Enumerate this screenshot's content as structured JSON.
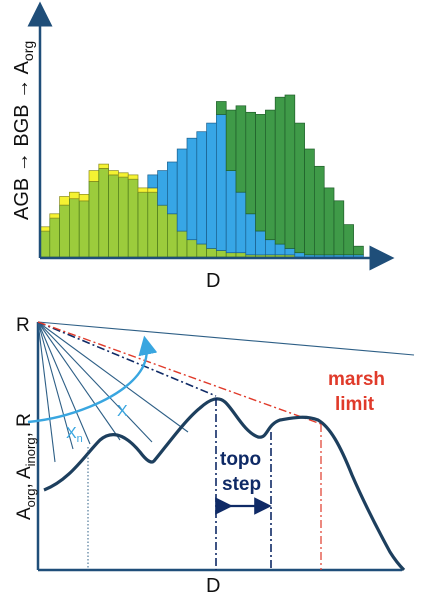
{
  "colors": {
    "axis": "#1f4e79",
    "light_green": "#9ccc3c",
    "light_green_edge": "#4e7a1a",
    "yellow": "#f5f232",
    "blue": "#37a6e6",
    "blue_edge": "#1a5f8c",
    "dark_green": "#3f9a48",
    "dark_green_edge": "#1f5e2a",
    "profile": "#1d3f5e",
    "ray": "#2e5f86",
    "dashdot": "#0f2a66",
    "marsh": "#e03a2a",
    "arc": "#39a6e0",
    "topo_text": "#0f2a66"
  },
  "top_panel": {
    "ylabel_line1": "AGB → BGB → A",
    "ylabel_sub": "org",
    "xlabel": "D",
    "chart_data": {
      "type": "bar",
      "stacked": true,
      "series_order": [
        "light_green",
        "yellow",
        "blue",
        "dark_green"
      ],
      "segments": [
        [
          [
            0,
            12
          ],
          [
            12,
            14
          ]
        ],
        [
          [
            0,
            18
          ],
          [
            18,
            20
          ]
        ],
        [
          [
            0,
            24
          ],
          [
            24,
            28
          ]
        ],
        [
          [
            0,
            27
          ],
          [
            27,
            30
          ]
        ],
        [
          [
            0,
            26
          ],
          [
            26,
            29
          ]
        ],
        [
          [
            0,
            35
          ],
          [
            35,
            40
          ]
        ],
        [
          [
            0,
            41
          ],
          [
            41,
            43
          ]
        ],
        [
          [
            0,
            38
          ],
          [
            38,
            40
          ]
        ],
        [
          [
            0,
            37
          ],
          [
            37,
            39
          ]
        ],
        [
          [
            0,
            36
          ],
          [
            36,
            38
          ]
        ],
        [
          [
            0,
            30
          ],
          [
            30,
            32
          ]
        ],
        [
          [
            0,
            30
          ],
          [
            30,
            32
          ],
          [
            32,
            38
          ]
        ],
        [
          [
            0,
            24
          ],
          [
            24,
            40
          ]
        ],
        [
          [
            0,
            20
          ],
          [
            20,
            44
          ]
        ],
        [
          [
            0,
            12
          ],
          [
            12,
            50
          ]
        ],
        [
          [
            0,
            8
          ],
          [
            8,
            55
          ]
        ],
        [
          [
            0,
            6
          ],
          [
            6,
            58
          ]
        ],
        [
          [
            0,
            4
          ],
          [
            4,
            62
          ]
        ],
        [
          [
            0,
            3
          ],
          [
            3,
            66
          ],
          [
            66,
            72
          ]
        ],
        [
          [
            0,
            2
          ],
          [
            2,
            40
          ],
          [
            40,
            68
          ]
        ],
        [
          [
            0,
            2
          ],
          [
            2,
            30
          ],
          [
            30,
            70
          ]
        ],
        [
          [
            0,
            1
          ],
          [
            1,
            20
          ],
          [
            20,
            67
          ]
        ],
        [
          [
            0,
            1
          ],
          [
            1,
            12
          ],
          [
            12,
            66
          ]
        ],
        [
          [
            0,
            1
          ],
          [
            1,
            8
          ],
          [
            8,
            68
          ]
        ],
        [
          [
            0,
            1
          ],
          [
            1,
            6
          ],
          [
            6,
            74
          ]
        ],
        [
          [
            0,
            1
          ],
          [
            1,
            4
          ],
          [
            4,
            75
          ]
        ],
        [
          [
            0,
            2
          ],
          [
            2,
            62
          ]
        ],
        [
          [
            0,
            1
          ],
          [
            1,
            50
          ]
        ],
        [
          [
            0,
            1
          ],
          [
            1,
            42
          ]
        ],
        [
          [
            0,
            1
          ],
          [
            1,
            32
          ]
        ],
        [
          [
            0,
            1
          ],
          [
            1,
            26
          ]
        ],
        [
          [
            0,
            1
          ],
          [
            1,
            15
          ]
        ],
        [
          [
            0,
            1
          ],
          [
            1,
            5
          ]
        ]
      ],
      "segment_colors": [
        [
          "light_green",
          "yellow"
        ],
        [
          "light_green",
          "yellow"
        ],
        [
          "light_green",
          "yellow"
        ],
        [
          "light_green",
          "yellow"
        ],
        [
          "light_green",
          "yellow"
        ],
        [
          "light_green",
          "yellow"
        ],
        [
          "light_green",
          "yellow"
        ],
        [
          "light_green",
          "yellow"
        ],
        [
          "light_green",
          "yellow"
        ],
        [
          "light_green",
          "yellow"
        ],
        [
          "light_green",
          "yellow"
        ],
        [
          "light_green",
          "yellow",
          "blue"
        ],
        [
          "light_green",
          "blue"
        ],
        [
          "light_green",
          "blue"
        ],
        [
          "light_green",
          "blue"
        ],
        [
          "light_green",
          "blue"
        ],
        [
          "light_green",
          "blue"
        ],
        [
          "light_green",
          "blue"
        ],
        [
          "light_green",
          "blue",
          "dark_green"
        ],
        [
          "light_green",
          "blue",
          "dark_green"
        ],
        [
          "light_green",
          "blue",
          "dark_green"
        ],
        [
          "light_green",
          "blue",
          "dark_green"
        ],
        [
          "light_green",
          "blue",
          "dark_green"
        ],
        [
          "light_green",
          "blue",
          "dark_green"
        ],
        [
          "light_green",
          "blue",
          "dark_green"
        ],
        [
          "light_green",
          "blue",
          "dark_green"
        ],
        [
          "blue",
          "dark_green"
        ],
        [
          "blue",
          "dark_green"
        ],
        [
          "blue",
          "dark_green"
        ],
        [
          "blue",
          "dark_green"
        ],
        [
          "blue",
          "dark_green"
        ],
        [
          "blue",
          "dark_green"
        ],
        [
          "blue",
          "dark_green"
        ]
      ]
    }
  },
  "bottom_panel": {
    "R_label": "R",
    "ylabel_A": "A",
    "ylabel_sub_org": "org",
    "ylabel_comma1": ", A",
    "ylabel_sub_inorg": "inorg",
    "ylabel_comma2": ", R",
    "xlabel": "D",
    "marsh_line1": "marsh",
    "marsh_line2": "limit",
    "topo_line1": "topo",
    "topo_line2": "step",
    "xn_label_main": "X",
    "xn_label_sub": "n",
    "x_label": "X"
  }
}
